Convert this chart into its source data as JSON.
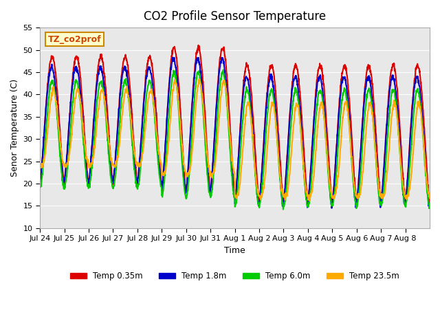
{
  "title": "CO2 Profile Sensor Temperature",
  "ylabel": "Senor Temperature (C)",
  "xlabel": "Time",
  "ylim": [
    10,
    55
  ],
  "yticks": [
    10,
    15,
    20,
    25,
    30,
    35,
    40,
    45,
    50,
    55
  ],
  "annotation_text": "TZ_co2prof",
  "annotation_facecolor": "#ffffcc",
  "annotation_edgecolor": "#cc8800",
  "bg_color": "#e8e8e8",
  "legend": [
    {
      "label": "Temp 0.35m",
      "color": "#dd0000"
    },
    {
      "label": "Temp 1.8m",
      "color": "#0000cc"
    },
    {
      "label": "Temp 6.0m",
      "color": "#00cc00"
    },
    {
      "label": "Temp 23.5m",
      "color": "#ffaa00"
    }
  ],
  "xtick_labels": [
    "Jul 24",
    "Jul 25",
    "Jul 26",
    "Jul 27",
    "Jul 28",
    "Jul 29",
    "Jul 30",
    "Jul 31",
    "Aug 1",
    "Aug 2",
    "Aug 3",
    "Aug 4",
    "Aug 5",
    "Aug 6",
    "Aug 7",
    "Aug 8"
  ],
  "line_width": 1.5
}
